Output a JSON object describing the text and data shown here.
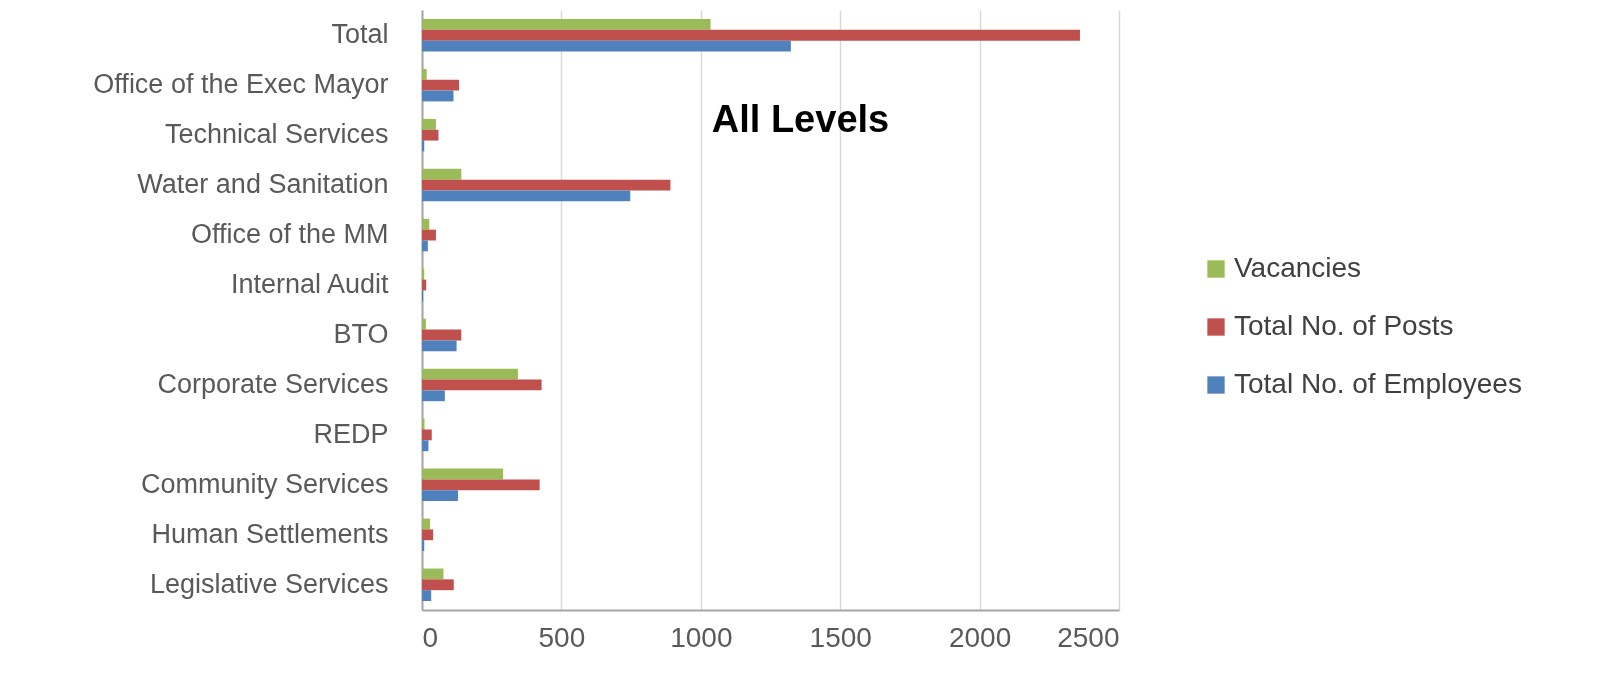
{
  "chart_data": {
    "type": "bar",
    "orientation": "horizontal",
    "title": "All Levels",
    "categories": [
      "Total",
      "Office of the Exec Mayor",
      "Technical Services",
      "Water and Sanitation",
      "Office of the MM",
      "Internal Audit",
      "BTO",
      "Corporate Services",
      "REDP",
      "Community Services",
      "Human Settlements",
      "Legislative Services"
    ],
    "series": [
      {
        "name": "Vacancies",
        "color": "#9bbb59",
        "values": [
          1035,
          17,
          50,
          141,
          26,
          8,
          14,
          344,
          9,
          291,
          29,
          77
        ]
      },
      {
        "name": "Total No. of Posts",
        "color": "#c0504d",
        "values": [
          2360,
          133,
          59,
          891,
          50,
          15,
          141,
          429,
          35,
          422,
          40,
          114
        ]
      },
      {
        "name": "Total No. of Employees",
        "color": "#4f81bd",
        "values": [
          1323,
          113,
          8,
          747,
          21,
          4,
          124,
          82,
          23,
          129,
          8,
          33
        ]
      }
    ],
    "xlim": [
      0,
      2500
    ],
    "xticks": [
      0,
      500,
      1000,
      1500,
      2000,
      2500
    ],
    "grid": "x",
    "legend": "right"
  }
}
